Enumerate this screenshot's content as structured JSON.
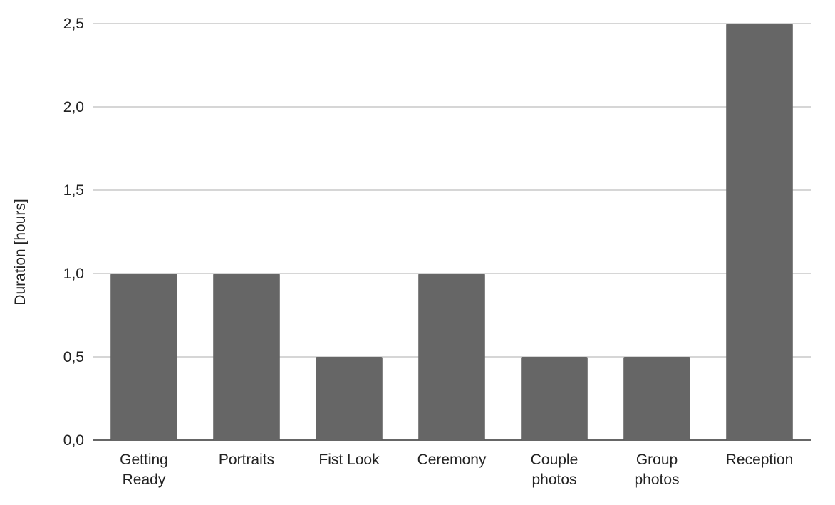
{
  "chart_data": {
    "type": "bar",
    "title": "",
    "xlabel": "",
    "ylabel": "Duration [hours]",
    "ylim": [
      0,
      2.5
    ],
    "yticks": [
      "0,0",
      "0,5",
      "1,0",
      "1,5",
      "2,0",
      "2,5"
    ],
    "ytick_values": [
      0,
      0.5,
      1.0,
      1.5,
      2.0,
      2.5
    ],
    "grid": true,
    "legend": "none",
    "bar_color": "#666666",
    "categories": [
      [
        "Getting",
        "Ready"
      ],
      [
        "Portraits"
      ],
      [
        "Fist Look"
      ],
      [
        "Ceremony"
      ],
      [
        "Couple",
        "photos"
      ],
      [
        "Group",
        "photos"
      ],
      [
        "Reception"
      ]
    ],
    "values": [
      1.0,
      1.0,
      0.5,
      1.0,
      0.5,
      0.5,
      2.5
    ]
  }
}
